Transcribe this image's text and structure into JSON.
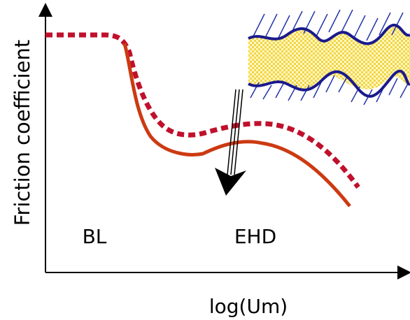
{
  "axes": {
    "y_label": "Friction coefficient",
    "x_label": "log(Um)"
  },
  "regions": {
    "bl": "BL",
    "ehd": "EHD"
  }
}
